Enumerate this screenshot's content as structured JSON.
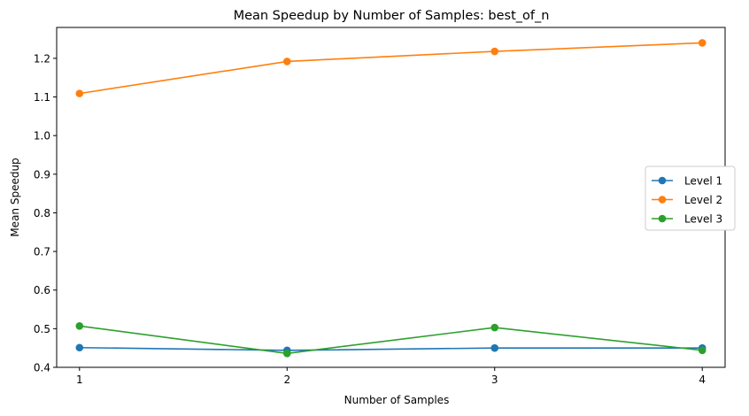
{
  "chart_data": {
    "type": "line",
    "title": "Mean Speedup by Number of Samples: best_of_n",
    "xlabel": "Number of Samples",
    "ylabel": "Mean Speedup",
    "x": [
      1,
      2,
      3,
      4
    ],
    "x_ticks": [
      "1",
      "2",
      "3",
      "4"
    ],
    "y_ticks": [
      "0.4",
      "0.5",
      "0.6",
      "0.7",
      "0.8",
      "0.9",
      "1.0",
      "1.1",
      "1.2"
    ],
    "xlim": [
      0.89,
      4.11
    ],
    "ylim": [
      0.4,
      1.28
    ],
    "grid": false,
    "legend_position": "center-right",
    "series": [
      {
        "name": "Level 1",
        "color": "#1f77b4",
        "values": [
          0.451,
          0.444,
          0.45,
          0.45
        ]
      },
      {
        "name": "Level 2",
        "color": "#ff7f0e",
        "values": [
          1.109,
          1.192,
          1.218,
          1.24
        ]
      },
      {
        "name": "Level 3",
        "color": "#2ca02c",
        "values": [
          0.507,
          0.436,
          0.503,
          0.444
        ]
      }
    ]
  }
}
